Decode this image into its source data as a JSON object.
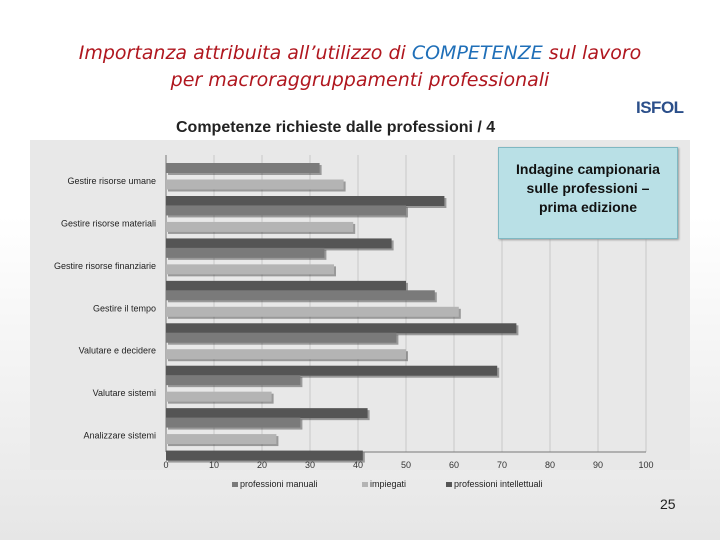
{
  "slide": {
    "title_line1_a": "Importanza attribuita all’utilizzo di ",
    "title_line1_b": "COMPETENZE",
    "title_line1_c": " sul lavoro",
    "title_line2": "per macroraggruppamenti professionali",
    "logo_text": "ISFOL",
    "page_number": "25",
    "info_box": [
      "Indagine campionaria",
      "sulle professioni –",
      "prima edizione"
    ]
  },
  "colors": {
    "title": "#b0171f",
    "title_keyword": "#1f6fb8",
    "info_box_bg": "#b9e0e6"
  },
  "chart_data": {
    "type": "bar",
    "orientation": "horizontal",
    "title": "Competenze richieste dalle professioni / 4",
    "categories": [
      "Gestire risorse umane",
      "Gestire risorse materiali",
      "Gestire risorse finanziarie",
      "Gestire il tempo",
      "Valutare e decidere",
      "Valutare sistemi",
      "Analizzare sistemi"
    ],
    "series": [
      {
        "name": "professioni manuali",
        "color": "#7a7a7a",
        "values": [
          32,
          50,
          33,
          56,
          48,
          28,
          28
        ]
      },
      {
        "name": "impiegati",
        "color": "#b4b4b4",
        "values": [
          37,
          39,
          35,
          61,
          50,
          22,
          23
        ]
      },
      {
        "name": "professioni intellettuali",
        "color": "#555555",
        "values": [
          58,
          47,
          50,
          73,
          69,
          42,
          41
        ]
      }
    ],
    "xlim": [
      0,
      100
    ],
    "xticks": [
      "0",
      "10",
      "20",
      "30",
      "40",
      "50",
      "60",
      "70",
      "80",
      "90",
      "100"
    ],
    "grid": true,
    "legend_position": "bottom"
  }
}
